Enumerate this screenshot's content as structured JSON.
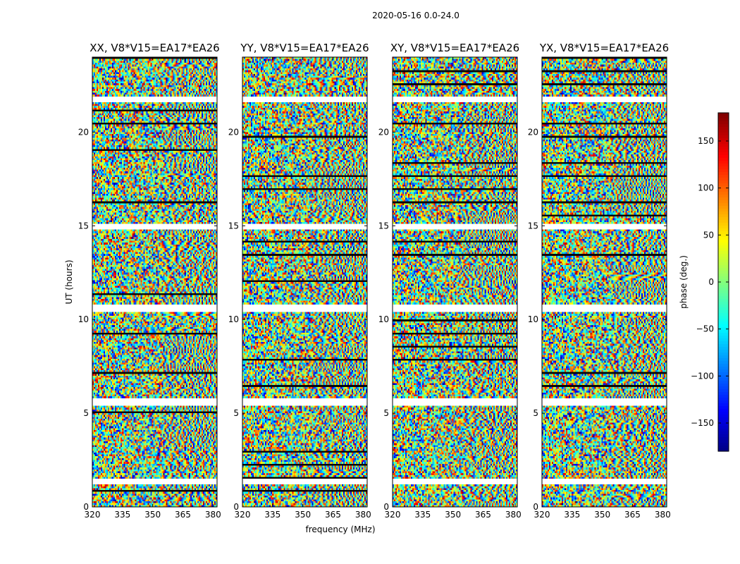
{
  "chart_data": {
    "type": "heatmap",
    "suptitle": "2020-05-16 0.0-24.0",
    "xlabel": "frequency (MHz)",
    "ylabel": "UT (hours)",
    "xlim": [
      320,
      382
    ],
    "ylim": [
      0,
      24
    ],
    "xticks": [
      "320",
      "335",
      "350",
      "365",
      "380"
    ],
    "yticks": [
      "0",
      "5",
      "10",
      "15",
      "20"
    ],
    "panels": [
      {
        "title": "XX, V8*V15=EA17*EA26"
      },
      {
        "title": "YY, V8*V15=EA17*EA26"
      },
      {
        "title": "XY, V8*V15=EA17*EA26"
      },
      {
        "title": "YX, V8*V15=EA17*EA26"
      }
    ],
    "colorbar": {
      "label": "phase (deg.)",
      "range": [
        -180,
        180
      ],
      "ticks": [
        "150",
        "100",
        "50",
        "0",
        "−50",
        "−100",
        "−150"
      ],
      "colormap": "jet"
    },
    "flagged_bands_hours": [
      [
        21.6,
        21.9
      ],
      [
        10.4,
        10.8
      ],
      [
        14.8,
        15.1
      ],
      [
        5.4,
        5.8
      ],
      [
        1.2,
        1.5
      ]
    ]
  }
}
